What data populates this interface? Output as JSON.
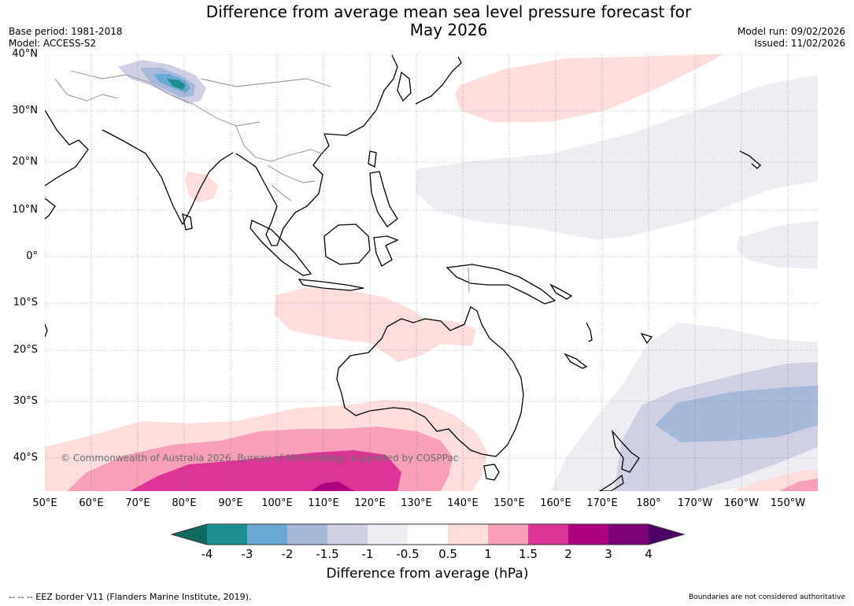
{
  "header": {
    "title_line1": "Difference from average mean sea level pressure forecast for",
    "title_line2": "May 2026",
    "base_period": "Base period: 1981-2018",
    "model": "Model: ACCESS-S2",
    "model_run": "Model run: 09/02/2026",
    "issued": "Issued: 11/02/2026"
  },
  "map": {
    "lat_labels": [
      "40°N",
      "30°N",
      "20°N",
      "10°N",
      "0°",
      "10°S",
      "20°S",
      "30°S",
      "40°S"
    ],
    "lon_labels": [
      "50°E",
      "60°E",
      "70°E",
      "80°E",
      "90°E",
      "100°E",
      "110°E",
      "120°E",
      "130°E",
      "140°E",
      "150°E",
      "160°E",
      "170°E",
      "180°",
      "170°W",
      "160°W",
      "150°W"
    ],
    "copyright": "© Commonwealth of Australia 2026, Bureau of Meteorology, supported by COSPPac",
    "colors": {
      "ocean": "#ffffff",
      "coast": "#000000",
      "border": "#8a8a8a",
      "grid": "#7a7a7a"
    }
  },
  "colorbar": {
    "ticks": [
      "-4",
      "-3",
      "-2",
      "-1.5",
      "-1",
      "-0.5",
      "0.5",
      "1",
      "1.5",
      "2",
      "3",
      "4"
    ],
    "bins": [
      {
        "from": "-4",
        "to": "-3",
        "color": "#1b8f94"
      },
      {
        "from": "-3",
        "to": "-2",
        "color": "#68a9d3"
      },
      {
        "from": "-2",
        "to": "-1.5",
        "color": "#a7b9da"
      },
      {
        "from": "-1.5",
        "to": "-1",
        "color": "#cfd0e4"
      },
      {
        "from": "-1",
        "to": "-0.5",
        "color": "#efecf4"
      },
      {
        "from": "-0.5",
        "to": "0.5",
        "color": "#ffffff"
      },
      {
        "from": "0.5",
        "to": "1",
        "color": "#fddedd"
      },
      {
        "from": "1",
        "to": "1.5",
        "color": "#f89fba"
      },
      {
        "from": "1.5",
        "to": "2",
        "color": "#dd3497"
      },
      {
        "from": "2",
        "to": "3",
        "color": "#ae017e"
      },
      {
        "from": "3",
        "to": "4",
        "color": "#7a0177"
      }
    ],
    "below_color": "#0f6b5f",
    "above_color": "#4d0063",
    "label": "Difference from average (hPa)"
  },
  "footer": {
    "eez_note": "--  --  -- EEZ border V11 (Flanders Marine Institute, 2019).",
    "disclaimer": "Boundaries are not considered authoritative"
  }
}
